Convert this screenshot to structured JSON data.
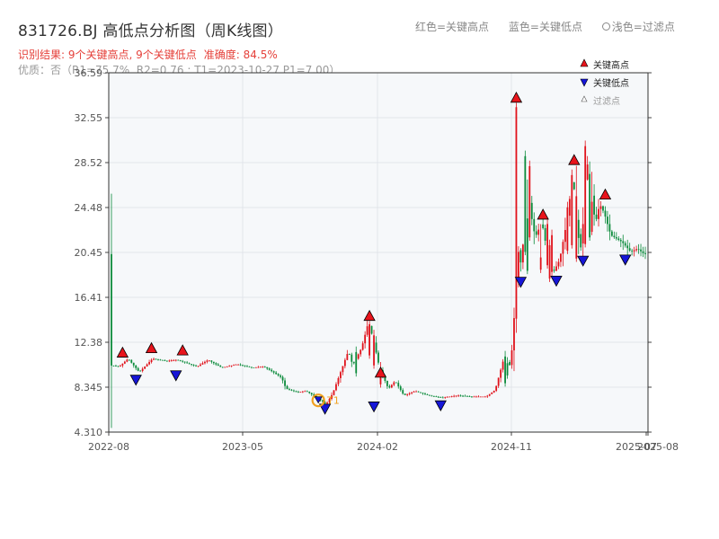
{
  "title": "831726.BJ 高低点分析图（周K线图）",
  "legend_top": {
    "red": "红色=关键高点",
    "blue": "蓝色=关键低点",
    "light": "浅色=过滤点"
  },
  "subtitle": {
    "result": "识别结果: 9个关键高点, 9个关键低点",
    "accuracy": "准确度: 84.5%",
    "detail": "优质：否（R1=75.7%, R2=0.76 ; T1=2023-10-27 P1=7.00）"
  },
  "chart_data": {
    "type": "candlestick",
    "ylim": [
      4.31,
      36.59
    ],
    "y_ticks": [
      "4.310",
      "8.345",
      "12.38",
      "16.41",
      "20.45",
      "24.48",
      "28.52",
      "32.55",
      "36.59"
    ],
    "x_ticks": [
      "2022-08",
      "2023-05",
      "2024-02",
      "2024-11",
      "2025-07",
      "2025-08"
    ],
    "legend": [
      "关键高点",
      "关键低点",
      "过滤点"
    ],
    "colors": {
      "up": "#e0111a",
      "down": "#0a8a3a",
      "high": "#e8141c",
      "low": "#1616d8",
      "t1": "#f0a020"
    },
    "segments": [
      [
        0,
        10.3
      ],
      [
        4,
        10.2
      ],
      [
        8,
        10.9
      ],
      [
        13,
        9.7
      ],
      [
        19,
        10.9
      ],
      [
        25,
        10.7
      ],
      [
        30,
        10.8
      ],
      [
        39,
        10.2
      ],
      [
        44,
        10.8
      ],
      [
        50,
        10.1
      ],
      [
        57,
        10.4
      ],
      [
        64,
        10.1
      ],
      [
        69,
        10.2
      ],
      [
        74,
        9.6
      ],
      [
        77,
        9.2
      ],
      [
        79,
        8.2
      ],
      [
        84,
        7.9
      ],
      [
        88,
        8.0
      ],
      [
        93,
        7.4
      ],
      [
        97,
        6.8
      ],
      [
        100,
        7.8
      ],
      [
        107,
        11.6
      ],
      [
        109,
        10.3
      ],
      [
        113,
        11.9
      ],
      [
        116,
        14.2
      ],
      [
        118,
        12.8
      ],
      [
        121,
        10.1
      ],
      [
        125,
        8.2
      ],
      [
        128,
        8.9
      ],
      [
        132,
        7.6
      ],
      [
        137,
        8.0
      ],
      [
        143,
        7.6
      ],
      [
        149,
        7.4
      ],
      [
        156,
        7.6
      ],
      [
        162,
        7.5
      ],
      [
        169,
        7.5
      ],
      [
        173,
        8.1
      ],
      [
        177,
        11.0
      ],
      [
        180,
        10.2
      ],
      [
        182,
        16.0
      ],
      [
        183,
        21.2
      ],
      [
        185,
        19.0
      ],
      [
        187,
        27.6
      ],
      [
        189,
        24.0
      ],
      [
        191,
        21.8
      ],
      [
        194,
        23.2
      ],
      [
        197,
        19.8
      ],
      [
        199,
        18.6
      ],
      [
        202,
        19.8
      ],
      [
        205,
        23.0
      ],
      [
        208,
        27.5
      ],
      [
        210,
        22.0
      ],
      [
        212,
        21.0
      ],
      [
        214,
        29.0
      ],
      [
        216,
        26.4
      ],
      [
        218,
        23.0
      ],
      [
        220,
        24.8
      ],
      [
        222,
        24.0
      ],
      [
        225,
        22.0
      ],
      [
        230,
        21.4
      ],
      [
        234,
        20.5
      ],
      [
        237,
        20.8
      ],
      [
        240,
        20.3
      ]
    ],
    "spikes": [
      [
        182,
        33.9,
        14.0
      ],
      [
        183,
        21.0,
        17.8
      ],
      [
        186,
        29.6,
        20.2
      ],
      [
        187,
        24.0,
        18.5
      ],
      [
        188,
        28.7,
        21.5
      ],
      [
        193,
        20.5,
        18.6
      ],
      [
        196,
        23.5,
        19.0
      ],
      [
        197,
        21.6,
        17.8
      ],
      [
        198,
        22.5,
        18.4
      ],
      [
        205,
        25.0,
        20.3
      ],
      [
        207,
        27.9,
        20.8
      ],
      [
        209,
        26.0,
        19.6
      ],
      [
        211,
        22.6,
        20.6
      ],
      [
        213,
        30.5,
        20.9
      ],
      [
        215,
        28.0,
        21.5
      ],
      [
        216,
        25.5,
        22.0
      ],
      [
        116,
        14.3,
        10.9
      ],
      [
        118,
        13.5,
        10.0
      ],
      [
        121,
        10.6,
        8.3
      ],
      [
        110,
        12.0,
        9.3
      ],
      [
        177,
        11.6,
        8.4
      ],
      [
        178,
        11.0,
        9.1
      ]
    ],
    "highs": [
      {
        "w": 5,
        "p": 10.8
      },
      {
        "w": 18,
        "p": 11.2
      },
      {
        "w": 32,
        "p": 11.0
      },
      {
        "w": 116,
        "p": 14.1
      },
      {
        "w": 121,
        "p": 9.0
      },
      {
        "w": 182,
        "p": 33.7
      },
      {
        "w": 194,
        "p": 23.2
      },
      {
        "w": 208,
        "p": 28.1
      },
      {
        "w": 222,
        "p": 25.0
      }
    ],
    "lows": [
      {
        "w": 11,
        "p": 9.5
      },
      {
        "w": 29,
        "p": 9.9
      },
      {
        "w": 96,
        "p": 6.9
      },
      {
        "w": 118,
        "p": 7.1
      },
      {
        "w": 148,
        "p": 7.2
      },
      {
        "w": 184,
        "p": 18.3
      },
      {
        "w": 200,
        "p": 18.4
      },
      {
        "w": 212,
        "p": 20.2
      },
      {
        "w": 231,
        "p": 20.3
      }
    ],
    "t1": {
      "label": "T1",
      "w": 93,
      "p": 7.0
    }
  }
}
